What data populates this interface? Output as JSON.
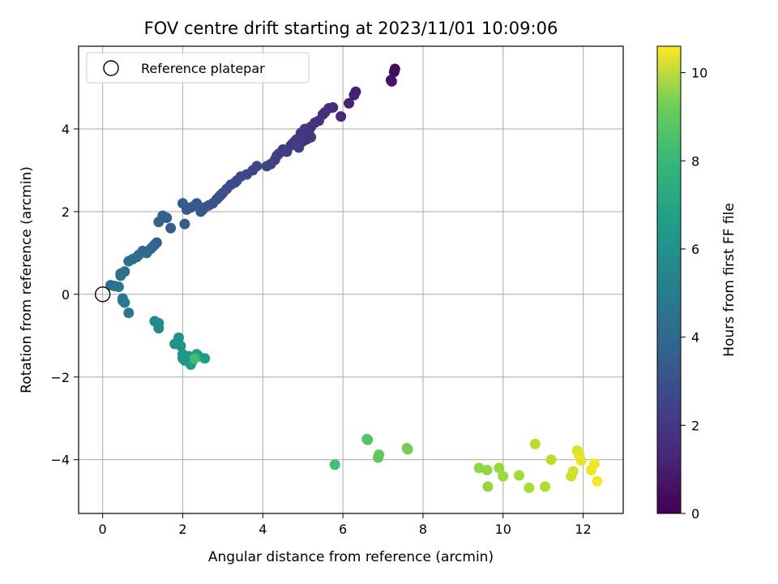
{
  "chart_data": {
    "type": "scatter",
    "title": "FOV centre drift starting at 2023/11/01 10:09:06",
    "xlabel": "Angular distance from reference (arcmin)",
    "ylabel": "Rotation from reference (arcmin)",
    "xlim": [
      -0.6,
      13.0
    ],
    "ylim": [
      -5.3,
      6.0
    ],
    "x_ticks": [
      0,
      2,
      4,
      6,
      8,
      10,
      12
    ],
    "y_ticks": [
      -4,
      -2,
      0,
      2,
      4
    ],
    "grid": true,
    "legend": {
      "placement": "top-left",
      "entries": [
        "Reference platepar"
      ]
    },
    "reference_point": {
      "x": 0,
      "y": 0
    },
    "colorbar": {
      "label": "Hours from first FF file",
      "colormap": "viridis",
      "range": [
        0,
        10.6
      ],
      "ticks": [
        0,
        2,
        4,
        6,
        8,
        10
      ]
    },
    "series": [
      {
        "x": [
          7.3,
          7.28,
          7.2,
          7.22,
          6.32,
          6.28,
          6.15,
          5.95,
          5.75,
          5.65,
          5.55,
          5.5,
          5.4,
          5.3,
          5.2,
          5.15,
          5.2,
          5.1,
          5.0,
          5.05,
          4.95,
          4.9,
          4.85,
          4.8,
          4.75,
          4.7,
          4.9,
          4.6,
          4.5,
          4.4,
          4.35,
          4.3,
          4.2,
          4.1,
          3.85,
          3.75,
          3.6,
          3.45,
          3.35,
          3.3,
          3.2,
          3.1,
          3.0,
          2.95,
          2.9,
          2.85,
          2.75,
          2.65,
          2.55,
          2.5,
          2.45,
          2.35,
          2.3,
          2.2,
          2.1,
          2.0,
          2.05,
          1.7,
          1.6,
          1.5,
          1.4,
          1.35,
          1.3,
          1.25,
          1.2,
          1.1,
          1.0,
          0.9,
          0.85,
          0.75,
          0.65,
          0.55,
          0.45,
          0.45,
          0.2,
          0.3,
          0.4,
          0.5,
          0.65
        ],
        "y": [
          5.45,
          5.38,
          5.18,
          5.15,
          4.9,
          4.82,
          4.62,
          4.3,
          4.52,
          4.5,
          4.4,
          4.35,
          4.2,
          4.15,
          4.05,
          3.95,
          3.8,
          3.75,
          3.7,
          4.0,
          3.9,
          3.65,
          3.75,
          3.7,
          3.65,
          3.6,
          3.55,
          3.45,
          3.5,
          3.4,
          3.35,
          3.25,
          3.15,
          3.1,
          3.1,
          3.0,
          2.9,
          2.85,
          2.75,
          2.7,
          2.65,
          2.55,
          2.45,
          2.4,
          2.35,
          2.3,
          2.2,
          2.15,
          2.1,
          2.05,
          2.0,
          2.2,
          2.15,
          2.1,
          2.05,
          2.2,
          1.7,
          1.6,
          1.85,
          1.9,
          1.75,
          1.25,
          1.2,
          1.15,
          1.1,
          1.0,
          1.05,
          0.95,
          0.9,
          0.85,
          0.8,
          0.55,
          0.45,
          0.5,
          0.22,
          0.2,
          0.18,
          -0.1,
          -0.45
        ],
        "hours": [
          0.3,
          0.35,
          0.45,
          0.5,
          0.9,
          0.95,
          1.05,
          1.2,
          1.3,
          1.35,
          1.4,
          1.45,
          1.5,
          1.55,
          1.6,
          1.62,
          1.65,
          1.7,
          1.72,
          1.75,
          1.78,
          1.8,
          1.82,
          1.85,
          1.88,
          1.9,
          1.92,
          1.95,
          2.0,
          2.02,
          2.05,
          2.08,
          2.1,
          2.15,
          2.2,
          2.25,
          2.3,
          2.35,
          2.4,
          2.45,
          2.5,
          2.55,
          2.6,
          2.62,
          2.65,
          2.68,
          2.7,
          2.75,
          2.8,
          2.82,
          2.85,
          2.88,
          2.9,
          2.95,
          3.0,
          3.05,
          3.1,
          3.15,
          3.2,
          3.25,
          3.3,
          3.35,
          3.4,
          3.45,
          3.5,
          3.55,
          3.6,
          3.65,
          3.7,
          3.75,
          3.8,
          3.85,
          3.9,
          3.95,
          4.0,
          4.05,
          4.1,
          4.15,
          4.2
        ]
      },
      {
        "x": [
          0.5,
          0.55,
          1.3,
          1.4,
          1.4,
          1.8,
          1.9,
          1.95,
          2.0,
          2.05,
          2.0,
          2.15,
          2.2,
          2.25,
          2.35,
          2.4,
          2.55,
          2.3
        ],
        "y": [
          -0.15,
          -0.2,
          -0.65,
          -0.7,
          -0.82,
          -1.2,
          -1.05,
          -1.25,
          -1.45,
          -1.6,
          -1.55,
          -1.5,
          -1.7,
          -1.6,
          -1.45,
          -1.5,
          -1.55,
          -1.55
        ],
        "hours": [
          4.3,
          4.35,
          5.0,
          5.05,
          5.1,
          5.3,
          5.35,
          5.4,
          5.45,
          5.5,
          5.55,
          5.6,
          5.65,
          5.7,
          5.75,
          5.8,
          5.85,
          7.3
        ]
      },
      {
        "x": [
          5.8,
          6.6,
          6.62,
          6.9,
          6.88,
          7.6,
          7.62,
          9.4,
          9.6,
          9.62,
          9.9,
          10.0,
          10.4,
          10.65,
          11.05,
          10.8,
          11.2,
          11.7,
          11.75,
          11.85,
          11.9,
          11.95,
          12.2,
          12.28,
          12.35
        ],
        "y": [
          -4.12,
          -3.5,
          -3.52,
          -3.88,
          -3.95,
          -3.72,
          -3.75,
          -4.2,
          -4.25,
          -4.65,
          -4.2,
          -4.4,
          -4.38,
          -4.68,
          -4.65,
          -3.62,
          -4.0,
          -4.4,
          -4.28,
          -3.78,
          -3.88,
          -4.02,
          -4.25,
          -4.1,
          -4.52
        ],
        "hours": [
          7.4,
          7.7,
          7.75,
          7.9,
          7.95,
          8.3,
          8.35,
          8.8,
          8.85,
          8.9,
          8.95,
          9.0,
          9.1,
          9.2,
          9.3,
          9.4,
          9.5,
          9.8,
          9.9,
          10.0,
          10.1,
          10.2,
          10.3,
          10.4,
          10.5
        ]
      }
    ]
  }
}
